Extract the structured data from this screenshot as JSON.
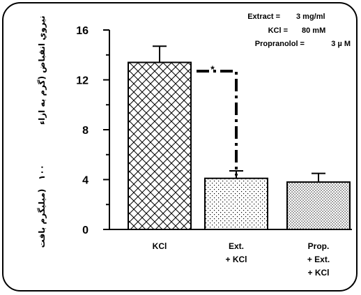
{
  "chart_data": {
    "type": "bar",
    "categories": [
      [
        "KCl"
      ],
      [
        "Ext.",
        "+ KCl"
      ],
      [
        "Prop.",
        "+ Ext.",
        "+ KCl"
      ]
    ],
    "values": [
      13.4,
      4.1,
      3.8
    ],
    "errors": [
      1.3,
      0.6,
      0.7
    ],
    "ylim": [
      0,
      16
    ],
    "yticks": [
      0,
      4,
      8,
      12,
      16
    ],
    "bar_patterns": [
      "crosshatch",
      "dots",
      "dense-dots"
    ],
    "significance": {
      "from": 0,
      "to": 1,
      "label": "*"
    },
    "ylabel_parts": [
      "نيروي انقباض (گرم به ازاء",
      "۱۰۰",
      "ميليگرم بافت)"
    ],
    "annotations": [
      {
        "label": "Extract =",
        "value": "3 mg/ml"
      },
      {
        "label": "KCl =",
        "value": "80 mM"
      },
      {
        "label": "Propranolol =",
        "value": "3 µ M"
      }
    ]
  }
}
